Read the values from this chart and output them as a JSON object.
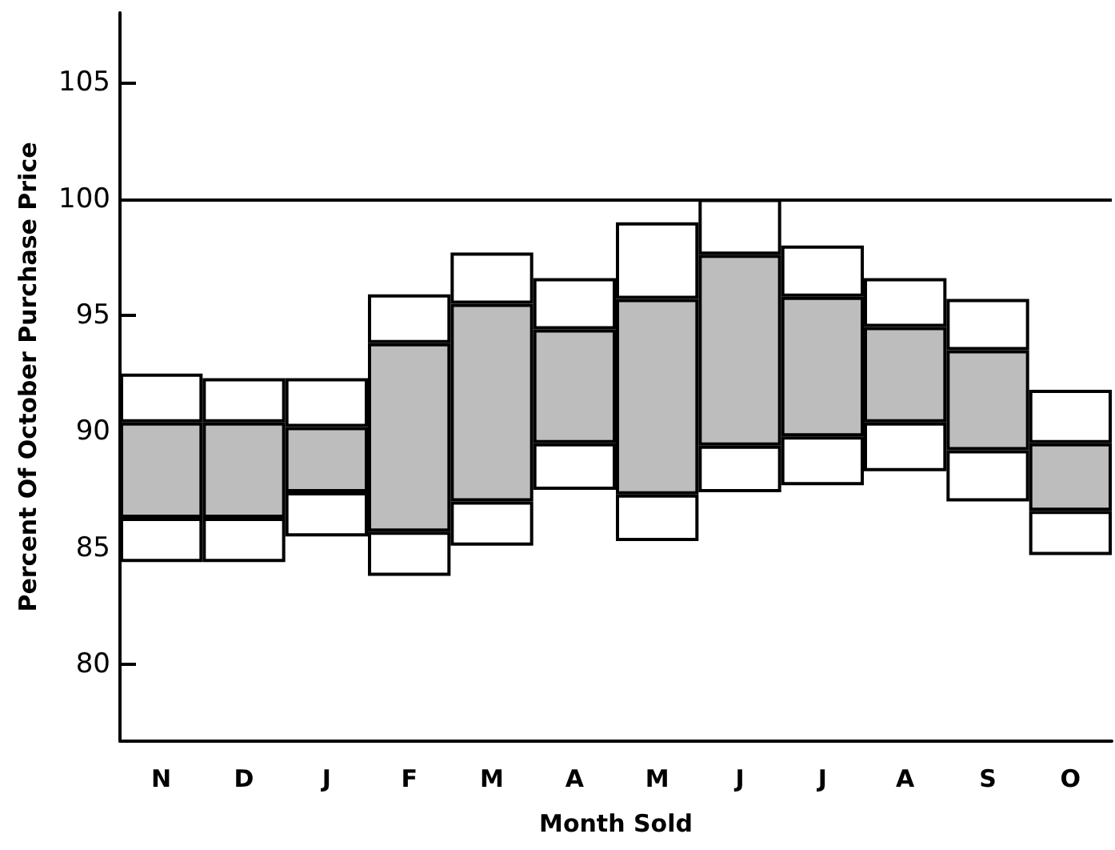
{
  "chart_data": {
    "type": "bar",
    "xlabel": "Month Sold",
    "ylabel": "Percent Of October Purchase Price",
    "categories": [
      "N",
      "D",
      "J",
      "F",
      "M",
      "A",
      "M",
      "J",
      "J",
      "A",
      "S",
      "O"
    ],
    "series": [
      {
        "color": "#ffffff",
        "base": [
          84.4,
          84.4,
          85.5,
          83.8,
          85.1,
          87.5,
          85.3,
          87.4,
          87.7,
          88.3,
          87.0,
          84.7
        ],
        "values": [
          1.9,
          1.9,
          1.9,
          1.9,
          1.9,
          2.0,
          2.0,
          2.0,
          2.1,
          2.1,
          2.2,
          1.9
        ]
      },
      {
        "color": "#bdbdbd",
        "base": [
          86.3,
          86.3,
          87.4,
          85.7,
          87.0,
          89.5,
          87.3,
          89.4,
          89.8,
          90.4,
          89.2,
          86.6
        ],
        "values": [
          4.1,
          4.1,
          2.8,
          8.1,
          8.5,
          4.9,
          8.4,
          8.2,
          6.0,
          4.1,
          4.3,
          2.9
        ]
      },
      {
        "color": "#ffffff",
        "base": [
          90.4,
          90.4,
          90.2,
          93.8,
          95.5,
          94.4,
          95.7,
          97.6,
          95.8,
          94.5,
          93.5,
          89.5
        ],
        "values": [
          2.1,
          1.9,
          2.1,
          2.1,
          2.2,
          2.2,
          3.3,
          2.4,
          2.2,
          2.1,
          2.2,
          2.3
        ]
      }
    ],
    "ylim": [
      76.7,
      108
    ],
    "yticks": [
      80,
      85,
      90,
      95,
      100,
      105
    ],
    "ref_lines": [
      {
        "axis": "y",
        "value": 100,
        "color": "#000000"
      }
    ],
    "grid": false
  }
}
